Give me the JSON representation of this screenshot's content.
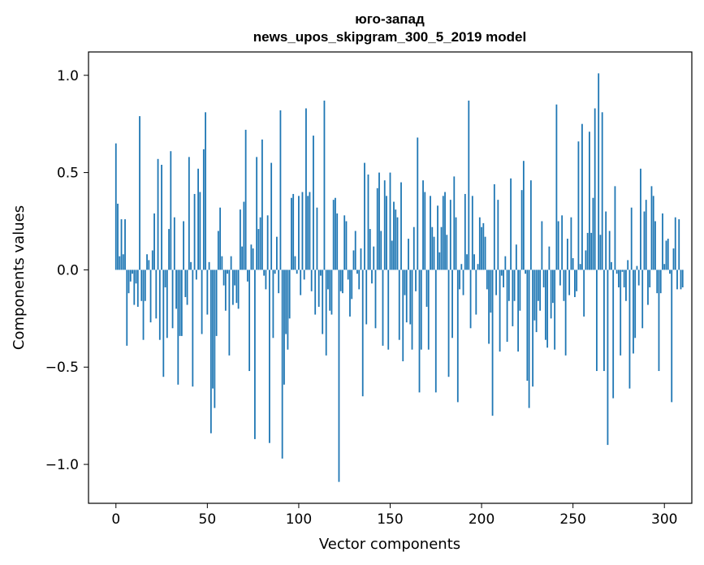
{
  "chart_data": {
    "type": "bar",
    "title": "юго-запад",
    "subtitle": "news_upos_skipgram_300_5_2019 model",
    "xlabel": "Vector components",
    "ylabel": "Components values",
    "xlim": [
      -15,
      315
    ],
    "ylim": [
      -1.2,
      1.12
    ],
    "xticks": [
      0,
      50,
      100,
      150,
      200,
      250,
      300
    ],
    "xtick_labels": [
      "0",
      "50",
      "100",
      "150",
      "200",
      "250",
      "300"
    ],
    "yticks": [
      -1.0,
      -0.5,
      0.0,
      0.5,
      1.0
    ],
    "ytick_labels": [
      "−1.0",
      "−0.5",
      "0.0",
      "0.5",
      "1.0"
    ],
    "grid": false,
    "bar_color": "#1f77b4",
    "values": [
      0.65,
      0.34,
      0.07,
      0.26,
      0.08,
      0.26,
      -0.39,
      -0.12,
      -0.06,
      -0.02,
      -0.18,
      -0.07,
      -0.19,
      0.79,
      -0.16,
      -0.36,
      -0.16,
      0.08,
      0.05,
      -0.27,
      0.1,
      0.29,
      -0.25,
      0.57,
      -0.36,
      0.54,
      -0.55,
      -0.09,
      -0.35,
      0.21,
      0.61,
      -0.3,
      0.27,
      -0.2,
      -0.59,
      -0.34,
      -0.34,
      0.25,
      -0.14,
      -0.18,
      0.58,
      0.04,
      -0.6,
      0.39,
      -0.05,
      0.52,
      0.4,
      -0.33,
      0.62,
      0.81,
      -0.23,
      0.04,
      -0.84,
      -0.61,
      -0.71,
      -0.34,
      0.2,
      0.32,
      0.07,
      -0.08,
      -0.21,
      -0.02,
      -0.44,
      0.07,
      -0.18,
      -0.08,
      -0.17,
      -0.2,
      0.31,
      0.12,
      0.35,
      0.72,
      -0.06,
      -0.52,
      0.13,
      0.11,
      -0.87,
      0.58,
      0.21,
      0.27,
      0.67,
      -0.03,
      -0.1,
      0.28,
      -0.89,
      0.55,
      -0.35,
      -0.02,
      0.17,
      -0.12,
      0.82,
      -0.97,
      -0.59,
      -0.33,
      -0.41,
      -0.25,
      0.37,
      0.39,
      0.07,
      -0.02,
      0.38,
      -0.13,
      0.4,
      -0.05,
      0.83,
      0.38,
      0.4,
      -0.11,
      0.69,
      -0.23,
      0.32,
      -0.19,
      -0.03,
      -0.33,
      0.87,
      -0.44,
      -0.1,
      -0.21,
      -0.23,
      0.36,
      0.37,
      0.29,
      -1.09,
      -0.11,
      -0.12,
      0.28,
      0.25,
      -0.05,
      -0.24,
      -0.15,
      0.1,
      0.2,
      -0.02,
      -0.1,
      0.11,
      -0.65,
      0.55,
      -0.28,
      0.49,
      0.21,
      -0.07,
      0.12,
      -0.3,
      0.42,
      0.5,
      0.2,
      -0.39,
      0.46,
      0.38,
      -0.41,
      0.5,
      0.15,
      0.35,
      0.31,
      0.27,
      -0.36,
      0.45,
      -0.47,
      -0.13,
      -0.27,
      0.16,
      -0.28,
      -0.41,
      0.22,
      -0.11,
      0.68,
      -0.63,
      -0.41,
      0.46,
      0.4,
      -0.19,
      -0.41,
      0.38,
      0.22,
      0.17,
      -0.63,
      0.33,
      0.09,
      0.22,
      0.38,
      0.4,
      0.18,
      -0.55,
      0.36,
      -0.35,
      0.48,
      0.27,
      -0.68,
      -0.1,
      0.03,
      -0.13,
      0.39,
      0.08,
      0.87,
      -0.3,
      0.38,
      0.08,
      -0.23,
      0.03,
      0.27,
      0.22,
      0.24,
      0.17,
      -0.1,
      -0.38,
      -0.22,
      -0.75,
      0.44,
      -0.13,
      0.36,
      -0.42,
      -0.03,
      -0.09,
      0.07,
      -0.37,
      -0.16,
      0.47,
      -0.29,
      -0.16,
      0.13,
      -0.42,
      -0.21,
      0.41,
      0.56,
      -0.02,
      -0.57,
      -0.71,
      0.46,
      -0.6,
      -0.26,
      -0.32,
      -0.16,
      -0.21,
      0.25,
      -0.09,
      -0.36,
      -0.4,
      0.12,
      -0.25,
      -0.17,
      -0.41,
      0.85,
      0.25,
      -0.08,
      0.28,
      -0.16,
      -0.44,
      0.16,
      -0.13,
      0.27,
      0.06,
      -0.14,
      -0.11,
      0.66,
      0.03,
      0.75,
      -0.24,
      0.1,
      0.19,
      0.71,
      0.19,
      0.37,
      0.83,
      -0.52,
      1.01,
      0.18,
      0.81,
      -0.52,
      0.3,
      -0.9,
      0.2,
      0.04,
      -0.66,
      0.43,
      -0.02,
      -0.09,
      -0.44,
      -0.01,
      -0.09,
      -0.16,
      0.05,
      -0.61,
      0.32,
      -0.43,
      -0.35,
      0.02,
      -0.08,
      0.52,
      -0.3,
      0.3,
      0.36,
      -0.18,
      -0.09,
      0.43,
      0.38,
      0.25,
      -0.12,
      -0.52,
      -0.12,
      0.29,
      0.03,
      0.15,
      0.16,
      -0.02,
      -0.68,
      0.11,
      0.27,
      -0.1,
      0.26,
      -0.1,
      -0.09
    ]
  }
}
